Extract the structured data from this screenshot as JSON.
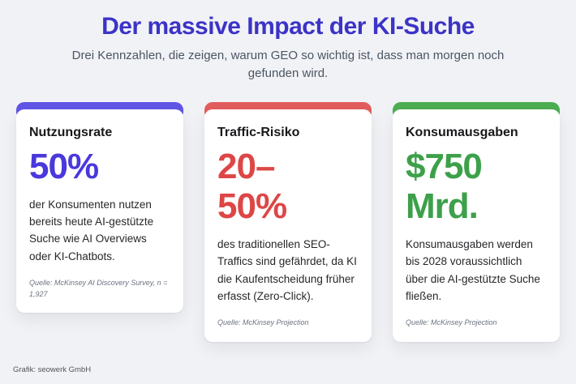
{
  "header": {
    "title": "Der massive Impact der KI-Suche",
    "subtitle": "Drei Kennzahlen, die zeigen, warum GEO so wichtig ist, dass man morgen noch gefunden wird."
  },
  "cards": [
    {
      "heading": "Nutzungsrate",
      "value": "50%",
      "body": "der Konsumenten nutzen bereits heute AI-gestützte Suche wie AI Overviews oder KI-Chatbots.",
      "source": "Quelle: McKinsey AI Discovery Survey, n = 1,927",
      "accent": {
        "bar": "#6055e6",
        "value": "#4a38dd"
      }
    },
    {
      "heading": "Traffic-Risiko",
      "value": "20–\n50%",
      "body": "des traditionellen SEO-Traffics sind gefährdet, da KI die Kaufentscheidung früher erfasst (Zero-Click).",
      "source": "Quelle: McKinsey Projection",
      "accent": {
        "bar": "#e25d5d",
        "value": "#de4646"
      }
    },
    {
      "heading": "Konsumausgaben",
      "value": "$750\nMrd.",
      "body": "Konsumausgaben werden bis 2028 voraussichtlich über die AI-gestützte Suche fließen.",
      "source": "Quelle: McKinsey Projection",
      "accent": {
        "bar": "#4cae52",
        "value": "#3da04a"
      }
    }
  ],
  "footer": {
    "credit": "Grafik: seowerk GmbH"
  },
  "colors": {
    "title": "#3c33c8",
    "background": "#f1f2f5",
    "card_background": "#ffffff"
  }
}
